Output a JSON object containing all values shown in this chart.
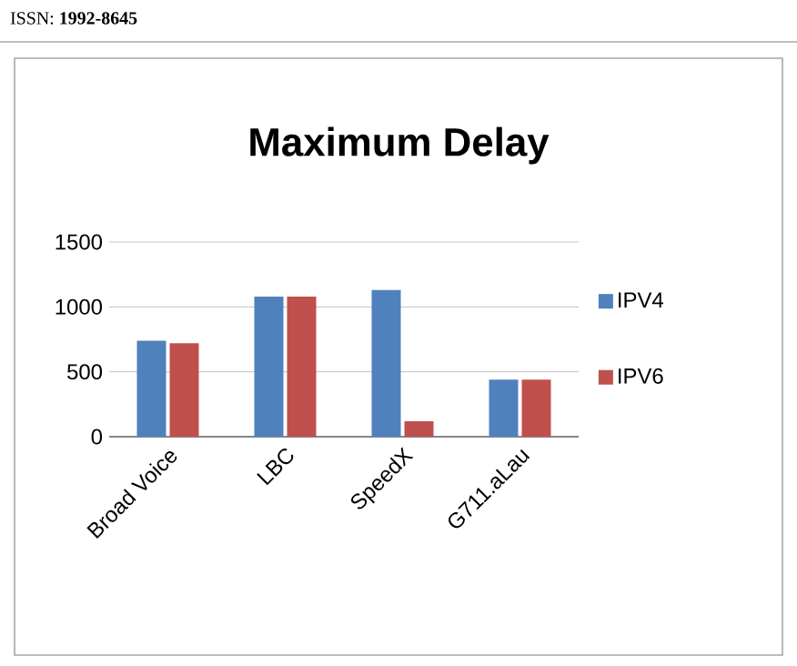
{
  "chart_data": {
    "type": "bar",
    "title": "Maximum Delay",
    "categories": [
      "Broad Voice",
      "LBC",
      "SpeedX",
      "G711.aLau"
    ],
    "series": [
      {
        "name": "IPV4",
        "color": "#4f81bd",
        "values": [
          740,
          1080,
          1130,
          440
        ]
      },
      {
        "name": "IPV6",
        "color": "#c0504d",
        "values": [
          720,
          1080,
          120,
          440
        ]
      }
    ],
    "ylim": [
      0,
      1500
    ],
    "yticks": [
      0,
      500,
      1000,
      1500
    ],
    "grid": "y",
    "legend": "right",
    "annotations": [
      "ISSN: **1992-8645**"
    ]
  }
}
